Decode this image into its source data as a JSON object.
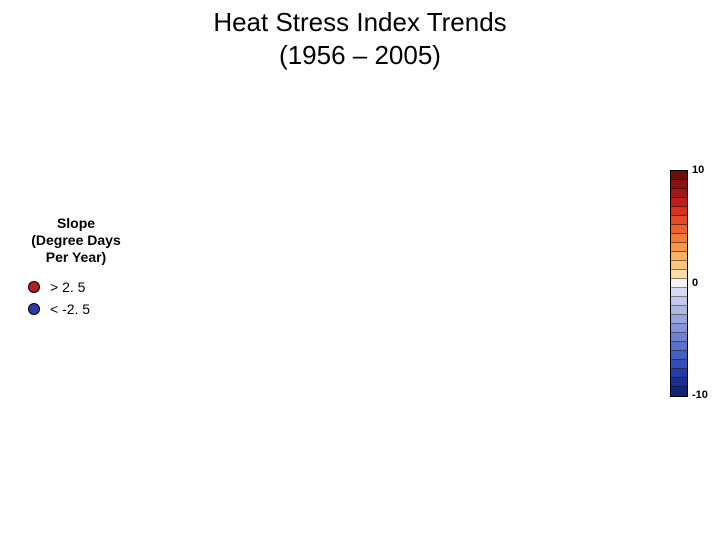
{
  "title_line1": "Heat Stress Index Trends",
  "title_line2": "(1956 – 2005)",
  "title_fontsize": 26,
  "legend": {
    "title_l1": "Slope",
    "title_l2": "(Degree Days",
    "title_l3": "Per Year)",
    "title_fontsize": 14,
    "items": [
      {
        "label": "> 2. 5",
        "fill": "#b3201f",
        "stroke": "#000000"
      },
      {
        "label": "< -2. 5",
        "fill": "#2a3aa8",
        "stroke": "#000000"
      }
    ],
    "item_fontsize": 14,
    "marker_size": 10
  },
  "colorbar": {
    "width": 16,
    "segment_height": 9,
    "top_label": "10",
    "mid_label": "0",
    "bottom_label": "-10",
    "label_fontsize": 11,
    "colors": [
      "#6e0d0a",
      "#8a1210",
      "#a41714",
      "#bf1d17",
      "#d6321c",
      "#e54a22",
      "#ef6129",
      "#f57a33",
      "#fa9545",
      "#fdb05d",
      "#ffc77e",
      "#ffdea6",
      "#f2f2f7",
      "#d7dbef",
      "#c3c9ea",
      "#aeb8e3",
      "#99a6dd",
      "#8494d6",
      "#6f82cf",
      "#5b70c8",
      "#475ec1",
      "#324cba",
      "#223ba7",
      "#1a2f8e",
      "#122374"
    ]
  }
}
